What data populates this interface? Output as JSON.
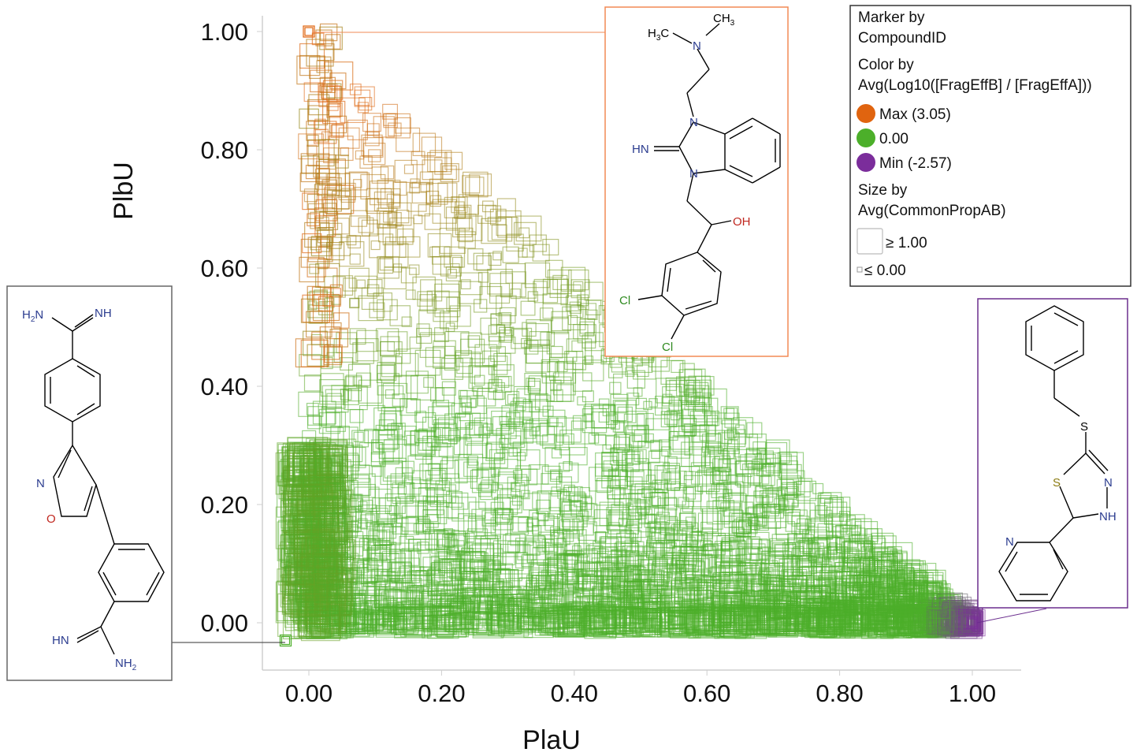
{
  "chart_data": {
    "type": "scatter",
    "xlabel": "PlaU",
    "ylabel": "PlbU",
    "xlim": [
      -0.075,
      1.075
    ],
    "ylim": [
      -0.08,
      1.04
    ],
    "x_ticks": [
      "0.00",
      "0.20",
      "0.40",
      "0.60",
      "0.80",
      "1.00"
    ],
    "y_ticks": [
      "0.00",
      "0.20",
      "0.40",
      "0.60",
      "0.80",
      "1.00"
    ],
    "marker": "square-open",
    "color_scale": {
      "max": "#e0640f",
      "mid": "#4caf2a",
      "min": "#7b2d9b"
    },
    "highlighted_points": [
      {
        "x": 0.0,
        "y": 1.0,
        "color_value": "max"
      },
      {
        "x": 1.0,
        "y": 0.0,
        "color_value": "min"
      },
      {
        "x": -0.035,
        "y": -0.03,
        "color_value": "mid"
      }
    ]
  },
  "legend": {
    "marker_title": "Marker by",
    "marker_field": "CompoundID",
    "color_title": "Color by",
    "color_field": "Avg(Log10([FragEffB] / [FragEffA]))",
    "color_items": [
      {
        "label": "Max (3.05)",
        "color": "#e0640f"
      },
      {
        "label": "0.00",
        "color": "#4caf2a"
      },
      {
        "label": "Min (-2.57)",
        "color": "#7b2d9b"
      }
    ],
    "size_title": "Size by",
    "size_field": "Avg(CommonPropAB)",
    "size_items": [
      {
        "label": "≥ 1.00"
      },
      {
        "label": "≤ 0.00"
      }
    ]
  },
  "structures": {
    "top": {
      "border_color": "#f28a55",
      "labels": {
        "h3c": "H",
        "h3c_sub": "3",
        "h3c_c": "C",
        "n_top": "N",
        "ch3": "CH",
        "ch3_sub": "3",
        "n1": "N",
        "n2": "N",
        "hn": "HN",
        "oh": "OH",
        "cl1": "Cl",
        "cl2": "Cl"
      }
    },
    "left": {
      "border_color": "#666666",
      "labels": {
        "h2n": "H",
        "h2n_sub": "2",
        "h2n_n": "N",
        "nh": "NH",
        "n": "N",
        "o": "O",
        "hn": "HN",
        "nh2": "NH",
        "nh2_sub": "2"
      }
    },
    "right": {
      "border_color": "#6b2e8e",
      "labels": {
        "s1": "S",
        "s2": "S",
        "n1": "N",
        "nh": "NH",
        "n_py": "N"
      }
    }
  }
}
